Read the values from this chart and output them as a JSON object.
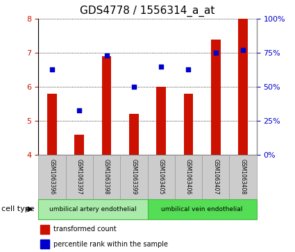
{
  "title": "GDS4778 / 1556314_a_at",
  "samples": [
    "GSM1063396",
    "GSM1063397",
    "GSM1063398",
    "GSM1063399",
    "GSM1063405",
    "GSM1063406",
    "GSM1063407",
    "GSM1063408"
  ],
  "transformed_count": [
    5.8,
    4.6,
    6.9,
    5.2,
    6.0,
    5.8,
    7.4,
    8.0
  ],
  "percentile_rank": [
    63,
    33,
    73,
    50,
    65,
    63,
    75,
    77
  ],
  "ylim_left": [
    4,
    8
  ],
  "ylim_right": [
    0,
    100
  ],
  "yticks_left": [
    4,
    5,
    6,
    7,
    8
  ],
  "yticks_right": [
    0,
    25,
    50,
    75,
    100
  ],
  "ytick_labels_right": [
    "0%",
    "25%",
    "50%",
    "75%",
    "100%"
  ],
  "bar_color": "#cc1100",
  "dot_color": "#0000cc",
  "bar_width": 0.35,
  "group1_label": "umbilical artery endothelial",
  "group2_label": "umbilical vein endothelial",
  "group1_color": "#aaeaaa",
  "group2_color": "#55dd55",
  "cell_type_label": "cell type",
  "legend_red": "transformed count",
  "legend_blue": "percentile rank within the sample",
  "title_fontsize": 11,
  "tick_fontsize": 8,
  "sample_fontsize": 5.5,
  "axis_color_left": "#cc1100",
  "axis_color_right": "#0000cc",
  "xtick_bg": "#cccccc",
  "xtick_border": "#999999"
}
